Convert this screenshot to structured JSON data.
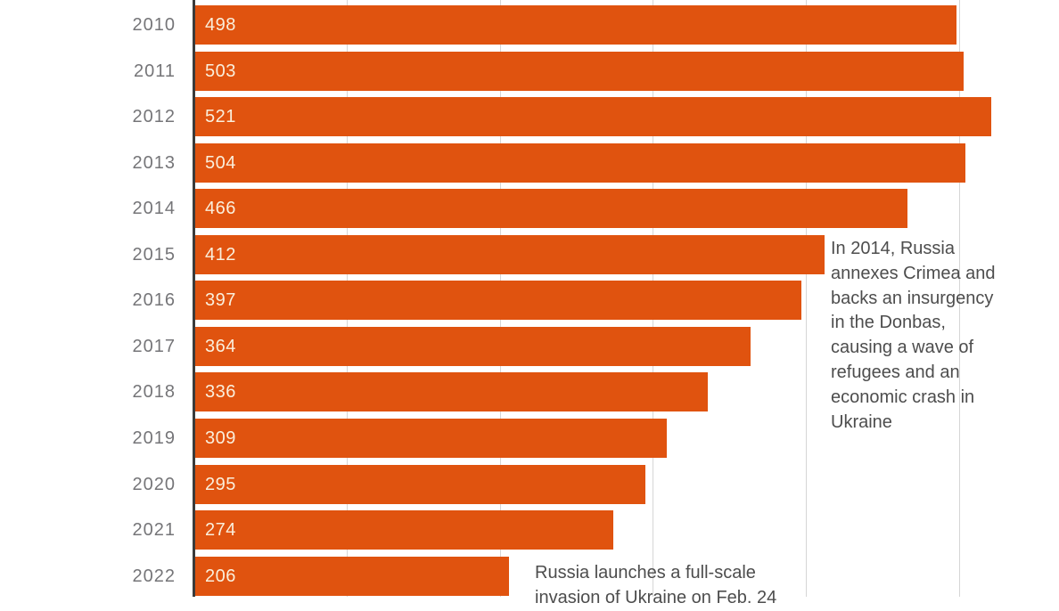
{
  "chart_data": {
    "type": "bar",
    "orientation": "horizontal",
    "title": "",
    "xlabel": "",
    "ylabel": "",
    "categories": [
      "2010",
      "2011",
      "2012",
      "2013",
      "2014",
      "2015",
      "2016",
      "2017",
      "2018",
      "2019",
      "2020",
      "2021",
      "2022"
    ],
    "values": [
      498,
      503,
      521,
      504,
      466,
      412,
      397,
      364,
      336,
      309,
      295,
      274,
      206
    ],
    "xlim": [
      0,
      565
    ],
    "gridlines_x": [
      100,
      200,
      300,
      400,
      500
    ],
    "grid": "vertical-light",
    "legend_position": "none",
    "annotations": [
      {
        "id": "crimea",
        "text": "In 2014, Russia\nannexes Crimea and\nbacks an insurgency\nin the Donbas,\ncausing a wave of\nrefugees and an\neconomic crash in\nUkraine",
        "anchor_category": "2015"
      },
      {
        "id": "invasion",
        "text": "Russia launches a full-scale\ninvasion of Ukraine on Feb. 24",
        "anchor_category": "2022"
      }
    ]
  },
  "colors": {
    "bar": "#E0530F",
    "value_label": "#FAEFDC",
    "year_label": "#757578",
    "axis_line": "#3B3B3B",
    "gridline": "#D6D6D6",
    "annotation_text": "#4D4D4D",
    "background": "#FFFFFF"
  }
}
